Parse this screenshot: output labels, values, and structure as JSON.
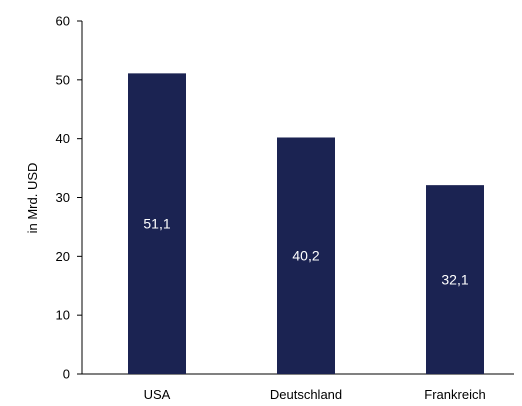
{
  "chart_data": {
    "type": "bar",
    "title": "",
    "xlabel": "",
    "ylabel": "in Mrd. USD",
    "ylim": [
      0,
      60
    ],
    "yticks": [
      "0",
      "10",
      "20",
      "30",
      "40",
      "50",
      "60"
    ],
    "grid": false,
    "legend": "none",
    "categories": [
      "USA",
      "Deutschland",
      "Frankreich"
    ],
    "values": [
      51.1,
      40.2,
      32.1
    ],
    "data_labels": [
      "51,1",
      "40,2",
      "32,1"
    ],
    "bar_color": "#1b2352",
    "label_color": "#ffffff",
    "axis_color": "#000000"
  }
}
